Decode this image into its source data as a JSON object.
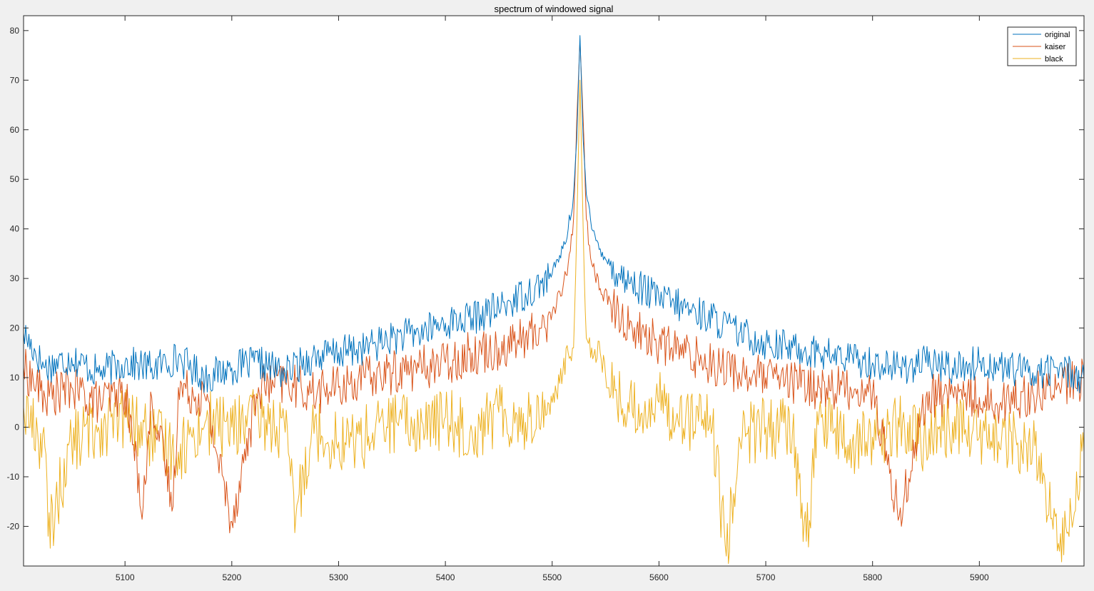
{
  "chart_data": {
    "type": "line",
    "title": "spectrum of windowed signal",
    "xlabel": "",
    "ylabel": "",
    "xlim": [
      5005,
      5998
    ],
    "ylim": [
      -28,
      83
    ],
    "xticks": [
      5100,
      5200,
      5300,
      5400,
      5500,
      5600,
      5700,
      5800,
      5900
    ],
    "yticks": [
      -20,
      -10,
      0,
      10,
      20,
      30,
      40,
      50,
      60,
      70,
      80
    ],
    "grid": false,
    "legend_position": "top-right",
    "peak_x": 5526,
    "series": [
      {
        "name": "original",
        "color": "#0072BD",
        "x": [
          5005,
          5025,
          5050,
          5075,
          5100,
          5125,
          5150,
          5175,
          5200,
          5225,
          5250,
          5275,
          5300,
          5325,
          5350,
          5375,
          5400,
          5425,
          5450,
          5475,
          5490,
          5500,
          5510,
          5515,
          5520,
          5523,
          5526,
          5529,
          5532,
          5537,
          5545,
          5560,
          5575,
          5600,
          5625,
          5650,
          5675,
          5700,
          5725,
          5750,
          5775,
          5800,
          5825,
          5850,
          5875,
          5900,
          5925,
          5950,
          5975,
          5998
        ],
        "y": [
          19,
          12,
          14,
          11,
          13,
          12,
          14,
          10,
          12,
          13,
          11,
          14,
          15,
          16,
          18,
          19,
          21,
          22,
          24,
          27,
          29,
          31,
          36,
          40,
          47,
          58,
          79,
          58,
          47,
          40,
          36,
          31,
          29,
          26,
          24,
          22,
          19,
          17,
          16,
          15,
          14,
          13,
          12,
          13,
          12,
          13,
          12,
          11,
          12,
          10
        ]
      },
      {
        "name": "kaiser",
        "color": "#D95319",
        "x": [
          5005,
          5025,
          5050,
          5075,
          5100,
          5117,
          5125,
          5145,
          5150,
          5175,
          5200,
          5225,
          5250,
          5275,
          5300,
          5325,
          5350,
          5375,
          5400,
          5425,
          5450,
          5475,
          5490,
          5500,
          5510,
          5515,
          5520,
          5523,
          5526,
          5529,
          5532,
          5537,
          5545,
          5560,
          5575,
          5600,
          5625,
          5650,
          5675,
          5700,
          5725,
          5750,
          5775,
          5800,
          5825,
          5850,
          5875,
          5900,
          5925,
          5950,
          5975,
          5998
        ],
        "y": [
          12,
          6,
          8,
          5,
          7,
          -16,
          6,
          -16,
          8,
          6,
          -19,
          8,
          9,
          7,
          8,
          10,
          11,
          12,
          13,
          15,
          16,
          18,
          20,
          23,
          28,
          33,
          42,
          62,
          78,
          62,
          42,
          33,
          28,
          23,
          20,
          17,
          15,
          13,
          11,
          10,
          9,
          8,
          8,
          7,
          -18,
          6,
          7,
          6,
          5,
          7,
          8,
          10
        ]
      },
      {
        "name": "black",
        "color": "#EDB120",
        "x": [
          5005,
          5025,
          5028,
          5050,
          5075,
          5100,
          5125,
          5150,
          5175,
          5200,
          5225,
          5250,
          5260,
          5275,
          5300,
          5325,
          5350,
          5375,
          5400,
          5425,
          5450,
          5475,
          5500,
          5510,
          5515,
          5520,
          5523,
          5526,
          5529,
          5532,
          5537,
          5545,
          5553,
          5575,
          5600,
          5625,
          5650,
          5663,
          5675,
          5700,
          5725,
          5738,
          5750,
          5775,
          5800,
          5825,
          5850,
          5875,
          5900,
          5925,
          5950,
          5975,
          5998
        ],
        "y": [
          4,
          -4,
          -22,
          -3,
          0,
          2,
          -2,
          -5,
          1,
          0,
          2,
          -1,
          -18,
          0,
          -3,
          -2,
          1,
          0,
          2,
          -1,
          3,
          1,
          5,
          11,
          15,
          16,
          40,
          70,
          40,
          18,
          16,
          15,
          8,
          3,
          5,
          2,
          0,
          -26,
          -2,
          0,
          -1,
          -23,
          3,
          -4,
          -2,
          0,
          -3,
          1,
          -2,
          -3,
          -4,
          -25,
          -5
        ]
      }
    ]
  }
}
